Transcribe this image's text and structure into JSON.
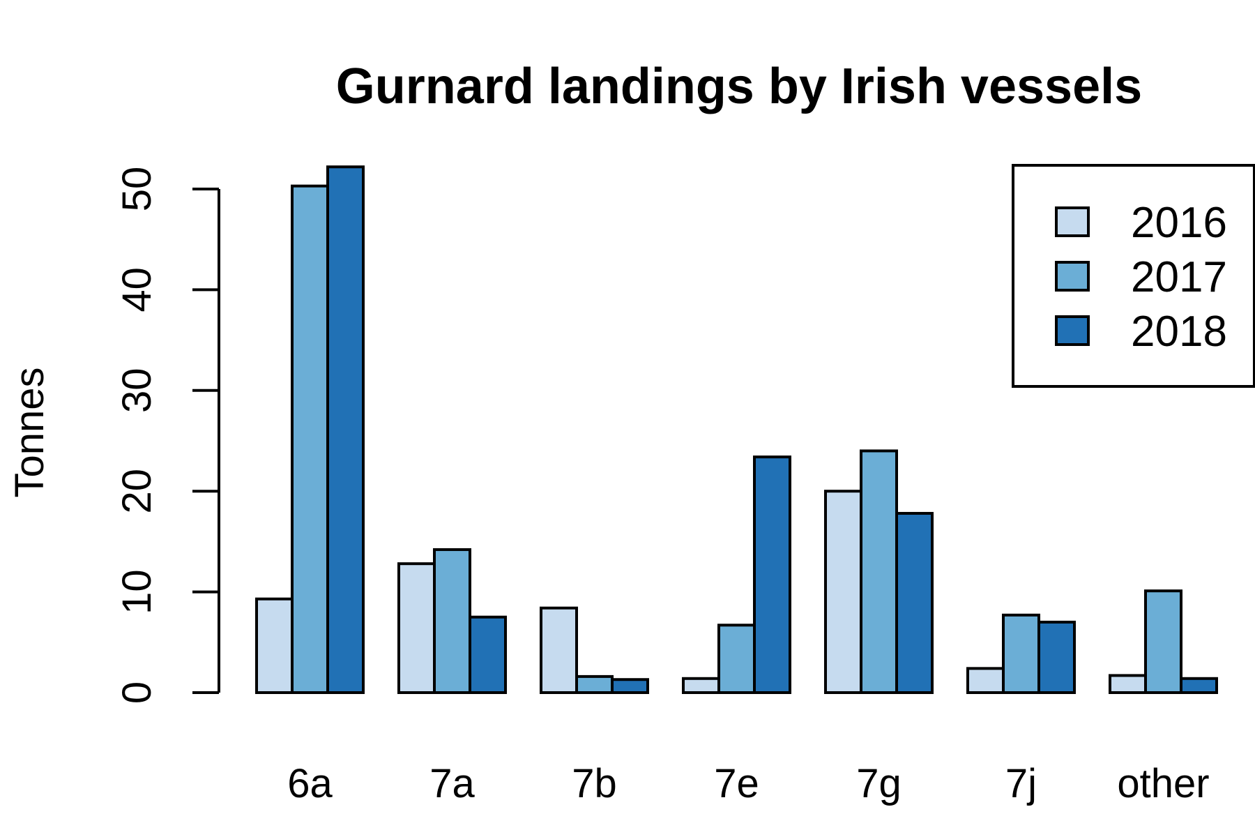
{
  "chart_data": {
    "type": "bar",
    "title": "Gurnard landings by Irish vessels",
    "xlabel": "",
    "ylabel": "Tonnes",
    "categories": [
      "6a",
      "7a",
      "7b",
      "7e",
      "7g",
      "7j",
      "other"
    ],
    "series": [
      {
        "name": "2016",
        "color": "#c6dbef",
        "values": [
          9.3,
          12.8,
          8.4,
          1.4,
          20.0,
          2.4,
          1.7
        ]
      },
      {
        "name": "2017",
        "color": "#6baed6",
        "values": [
          50.3,
          14.2,
          1.6,
          6.7,
          24.0,
          7.7,
          10.1
        ]
      },
      {
        "name": "2018",
        "color": "#2171b5",
        "values": [
          52.2,
          7.5,
          1.3,
          23.4,
          17.8,
          7.0,
          1.4
        ]
      }
    ],
    "ylim": [
      0,
      50
    ],
    "yticks": [
      "0",
      "10",
      "20",
      "30",
      "40",
      "50"
    ],
    "grid": false,
    "legend": "top-right",
    "bar_style": "grouped"
  }
}
